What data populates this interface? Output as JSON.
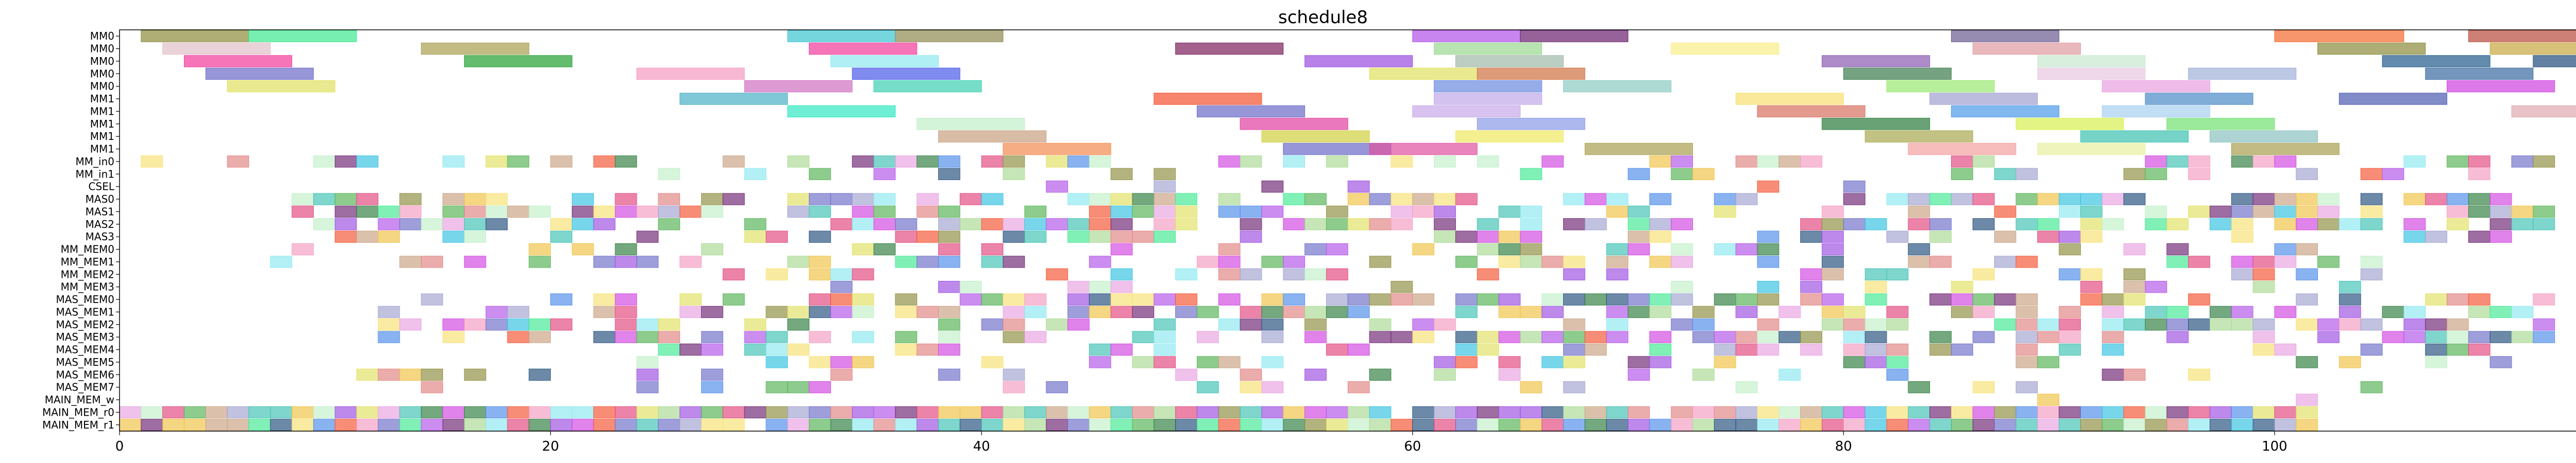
{
  "chart_data": {
    "type": "gantt",
    "title": "schedule8",
    "xlabel": "",
    "ylabel": "",
    "xlim": [
      0,
      117
    ],
    "x_ticks": [
      0,
      20,
      40,
      60,
      80,
      100
    ],
    "grid": false,
    "legend": "none",
    "rows": [
      "MM0",
      "MM0",
      "MM0",
      "MM0",
      "MM0",
      "MM1",
      "MM1",
      "MM1",
      "MM1",
      "MM1",
      "MM_in0",
      "MM_in1",
      "CSEL",
      "MAS0",
      "MAS1",
      "MAS2",
      "MAS3",
      "MM_MEM0",
      "MM_MEM1",
      "MM_MEM2",
      "MM_MEM3",
      "MAS_MEM0",
      "MAS_MEM1",
      "MAS_MEM2",
      "MAS_MEM3",
      "MAS_MEM4",
      "MAS_MEM5",
      "MAS_MEM6",
      "MAS_MEM7",
      "MAIN_MEM_w",
      "MAIN_MEM_r0",
      "MAIN_MEM_r1"
    ],
    "tasks": [
      {
        "row": 0,
        "start": 1,
        "end": 6,
        "color": "#8B8B3A"
      },
      {
        "row": 0,
        "start": 6,
        "end": 11,
        "color": "#3CE88F"
      },
      {
        "row": 0,
        "start": 31,
        "end": 36,
        "color": "#3CC4D0"
      },
      {
        "row": 0,
        "start": 36,
        "end": 41,
        "color": "#8E8A50"
      },
      {
        "row": 0,
        "start": 60,
        "end": 65,
        "color": "#B150E8"
      },
      {
        "row": 0,
        "start": 65,
        "end": 70,
        "color": "#6A1F6E"
      },
      {
        "row": 0,
        "start": 85,
        "end": 90,
        "color": "#6A5A90"
      },
      {
        "row": 0,
        "start": 100,
        "end": 106,
        "color": "#F46A2E"
      },
      {
        "row": 0,
        "start": 109,
        "end": 114,
        "color": "#B84A3A"
      },
      {
        "row": 1,
        "start": 2,
        "end": 7,
        "color": "#E0C0C8"
      },
      {
        "row": 1,
        "start": 14,
        "end": 19,
        "color": "#A8A050"
      },
      {
        "row": 1,
        "start": 32,
        "end": 37,
        "color": "#F23A9A"
      },
      {
        "row": 1,
        "start": 49,
        "end": 54,
        "color": "#7A1F5A"
      },
      {
        "row": 1,
        "start": 61,
        "end": 66,
        "color": "#9AD890"
      },
      {
        "row": 1,
        "start": 72,
        "end": 77,
        "color": "#F8EE88"
      },
      {
        "row": 1,
        "start": 86,
        "end": 91,
        "color": "#E09AA0"
      },
      {
        "row": 1,
        "start": 102,
        "end": 107,
        "color": "#8A8A3A"
      },
      {
        "row": 1,
        "start": 110,
        "end": 115,
        "color": "#C8A840"
      },
      {
        "row": 2,
        "start": 3,
        "end": 8,
        "color": "#F23A9A"
      },
      {
        "row": 2,
        "start": 16,
        "end": 21,
        "color": "#22A030"
      },
      {
        "row": 2,
        "start": 33,
        "end": 38,
        "color": "#8EE8F0"
      },
      {
        "row": 2,
        "start": 55,
        "end": 60,
        "color": "#9A4AE0"
      },
      {
        "row": 2,
        "start": 62,
        "end": 67,
        "color": "#A0B8A8"
      },
      {
        "row": 2,
        "start": 79,
        "end": 84,
        "color": "#8A5AB0"
      },
      {
        "row": 2,
        "start": 89,
        "end": 94,
        "color": "#C8E8D0"
      },
      {
        "row": 2,
        "start": 105,
        "end": 110,
        "color": "#1F5A8A"
      },
      {
        "row": 2,
        "start": 112,
        "end": 117,
        "color": "#1F4A7A"
      },
      {
        "row": 3,
        "start": 4,
        "end": 9,
        "color": "#6A6AC8"
      },
      {
        "row": 3,
        "start": 24,
        "end": 29,
        "color": "#F49AC0"
      },
      {
        "row": 3,
        "start": 34,
        "end": 39,
        "color": "#4A5AE8"
      },
      {
        "row": 3,
        "start": 58,
        "end": 63,
        "color": "#E0E060"
      },
      {
        "row": 3,
        "start": 63,
        "end": 68,
        "color": "#D07040"
      },
      {
        "row": 3,
        "start": 80,
        "end": 85,
        "color": "#3A7A4A"
      },
      {
        "row": 3,
        "start": 89,
        "end": 94,
        "color": "#E8C8E0"
      },
      {
        "row": 3,
        "start": 96,
        "end": 101,
        "color": "#A0B0D8"
      },
      {
        "row": 3,
        "start": 107,
        "end": 112,
        "color": "#3A6AA0"
      },
      {
        "row": 4,
        "start": 5,
        "end": 10,
        "color": "#E0E060"
      },
      {
        "row": 4,
        "start": 29,
        "end": 34,
        "color": "#D070C0"
      },
      {
        "row": 4,
        "start": 35,
        "end": 40,
        "color": "#3CD0B0"
      },
      {
        "row": 4,
        "start": 61,
        "end": 66,
        "color": "#6A8AE0"
      },
      {
        "row": 4,
        "start": 67,
        "end": 72,
        "color": "#8ACAC0"
      },
      {
        "row": 4,
        "start": 82,
        "end": 87,
        "color": "#9AE870"
      },
      {
        "row": 4,
        "start": 92,
        "end": 97,
        "color": "#E8A0E0"
      },
      {
        "row": 4,
        "start": 108,
        "end": 113,
        "color": "#D040E0"
      },
      {
        "row": 5,
        "start": 26,
        "end": 31,
        "color": "#4AB0C8"
      },
      {
        "row": 5,
        "start": 48,
        "end": 53,
        "color": "#F4502E"
      },
      {
        "row": 5,
        "start": 61,
        "end": 66,
        "color": "#C0A8E8"
      },
      {
        "row": 5,
        "start": 75,
        "end": 80,
        "color": "#F8E070"
      },
      {
        "row": 5,
        "start": 84,
        "end": 89,
        "color": "#A0A0D0"
      },
      {
        "row": 5,
        "start": 94,
        "end": 99,
        "color": "#4A8AC8"
      },
      {
        "row": 5,
        "start": 103,
        "end": 108,
        "color": "#4A5AB0"
      },
      {
        "row": 6,
        "start": 31,
        "end": 36,
        "color": "#30E8C0"
      },
      {
        "row": 6,
        "start": 50,
        "end": 55,
        "color": "#6A6AC8"
      },
      {
        "row": 6,
        "start": 60,
        "end": 65,
        "color": "#C8A8E8"
      },
      {
        "row": 6,
        "start": 76,
        "end": 81,
        "color": "#D87060"
      },
      {
        "row": 6,
        "start": 85,
        "end": 90,
        "color": "#4A9AE8"
      },
      {
        "row": 6,
        "start": 92,
        "end": 97,
        "color": "#A8D0F0"
      },
      {
        "row": 6,
        "start": 111,
        "end": 116,
        "color": "#E0A8B0"
      },
      {
        "row": 7,
        "start": 37,
        "end": 42,
        "color": "#C0F0C8"
      },
      {
        "row": 7,
        "start": 52,
        "end": 57,
        "color": "#E040A0"
      },
      {
        "row": 7,
        "start": 63,
        "end": 68,
        "color": "#8A9AE8"
      },
      {
        "row": 7,
        "start": 79,
        "end": 84,
        "color": "#2A7A3A"
      },
      {
        "row": 7,
        "start": 88,
        "end": 93,
        "color": "#D8F050"
      },
      {
        "row": 7,
        "start": 95,
        "end": 100,
        "color": "#70E070"
      },
      {
        "row": 8,
        "start": 38,
        "end": 43,
        "color": "#C8A080"
      },
      {
        "row": 8,
        "start": 53,
        "end": 58,
        "color": "#D0D040"
      },
      {
        "row": 8,
        "start": 62,
        "end": 67,
        "color": "#F0E860"
      },
      {
        "row": 8,
        "start": 81,
        "end": 86,
        "color": "#A8A850"
      },
      {
        "row": 8,
        "start": 91,
        "end": 96,
        "color": "#3AC0B0"
      },
      {
        "row": 8,
        "start": 97,
        "end": 102,
        "color": "#8AC0C0"
      },
      {
        "row": 9,
        "start": 41,
        "end": 46,
        "color": "#F48A50"
      },
      {
        "row": 9,
        "start": 54,
        "end": 59,
        "color": "#6A6AC8"
      },
      {
        "row": 9,
        "start": 58,
        "end": 63,
        "color": "#E050A0"
      },
      {
        "row": 9,
        "start": 68,
        "end": 73,
        "color": "#A8A050"
      },
      {
        "row": 9,
        "start": 83,
        "end": 88,
        "color": "#F4A0A0"
      },
      {
        "row": 9,
        "start": 89,
        "end": 94,
        "color": "#E8F0A0"
      },
      {
        "row": 9,
        "start": 98,
        "end": 103,
        "color": "#A8A050"
      }
    ]
  }
}
